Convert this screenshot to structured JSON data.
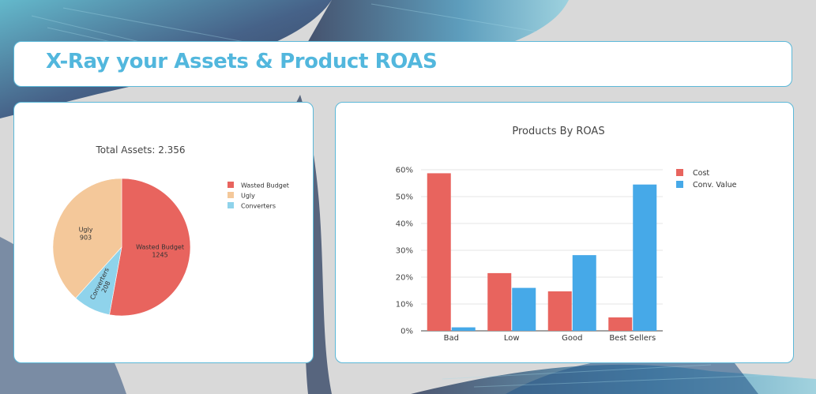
{
  "header": {
    "title": "X-Ray your Assets & Product ROAS"
  },
  "chart_data": [
    {
      "type": "pie",
      "title": "Total Assets: 2.356",
      "legend_placement": "right",
      "slices": [
        {
          "label": "Wasted Budget",
          "value": 1245,
          "color": "#e8645e"
        },
        {
          "label": "Converters",
          "value": 208,
          "color": "#8fd3eb"
        },
        {
          "label": "Ugly",
          "value": 903,
          "color": "#f4c89a"
        }
      ],
      "legend_order": [
        "Wasted Budget",
        "Ugly",
        "Converters"
      ]
    },
    {
      "type": "bar",
      "title": "Products By ROAS",
      "categories": [
        "Bad",
        "Low",
        "Good",
        "Best Sellers"
      ],
      "series": [
        {
          "name": "Cost",
          "values": [
            58.7,
            21.5,
            14.7,
            5.0
          ],
          "color": "#e8645e"
        },
        {
          "name": "Conv. Value",
          "values": [
            1.3,
            16.0,
            28.2,
            54.5
          ],
          "color": "#46a9e8"
        }
      ],
      "ylim": [
        0,
        60
      ],
      "yticks": [
        "0%",
        "10%",
        "20%",
        "30%",
        "40%",
        "50%",
        "60%"
      ],
      "grid": true,
      "legend_placement": "top-right"
    }
  ]
}
